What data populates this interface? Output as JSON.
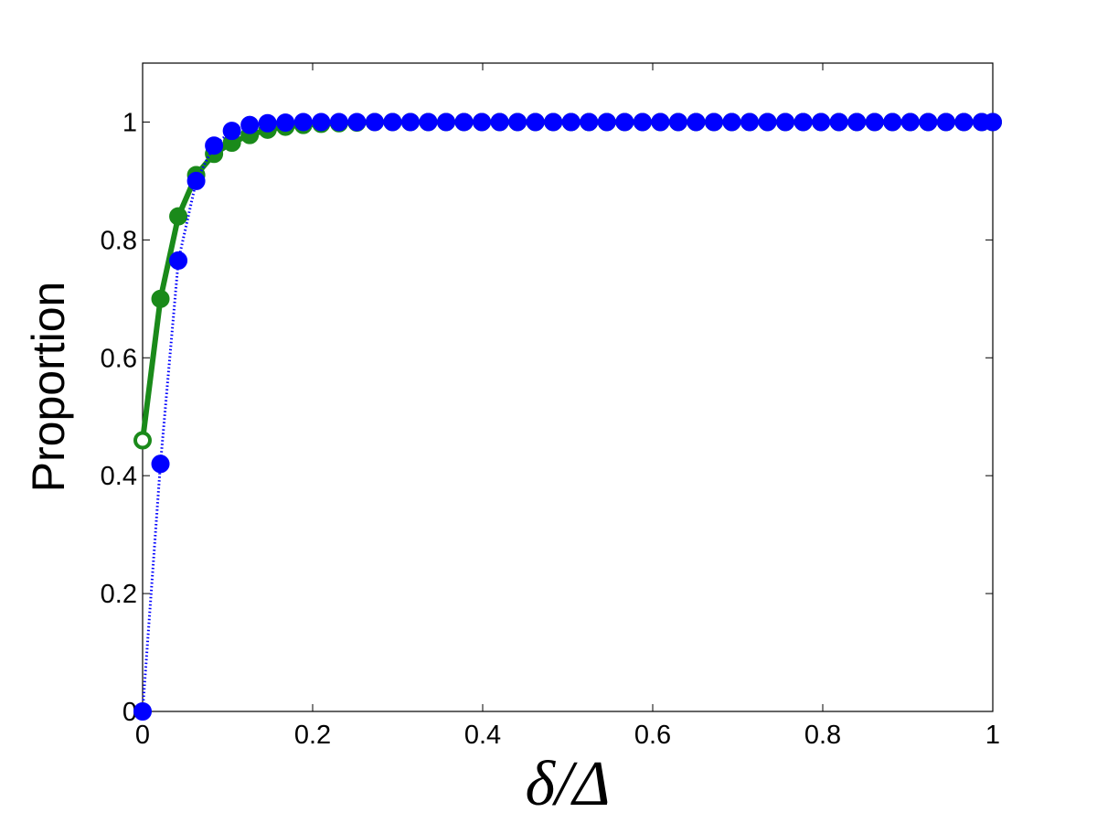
{
  "chart_data": {
    "type": "line",
    "title": "",
    "xlabel": "δ/Δ",
    "ylabel": "Proportion",
    "xlim": [
      0,
      1
    ],
    "ylim": [
      0,
      1.1
    ],
    "grid": false,
    "xticks": [
      0,
      0.2,
      0.4,
      0.6,
      0.8,
      1
    ],
    "xtick_labels": [
      "0",
      "0.2",
      "0.4",
      "0.6",
      "0.8",
      "1"
    ],
    "yticks": [
      0,
      0.2,
      0.4,
      0.6,
      0.8,
      1
    ],
    "ytick_labels": [
      "0",
      "0.2",
      "0.4",
      "0.6",
      "0.8",
      "1"
    ],
    "x": [
      0,
      0.021,
      0.042,
      0.063,
      0.084,
      0.105,
      0.126,
      0.147,
      0.168,
      0.189,
      0.21,
      0.231,
      0.252,
      0.273,
      0.294,
      0.315,
      0.336,
      0.357,
      0.378,
      0.399,
      0.42,
      0.441,
      0.462,
      0.483,
      0.504,
      0.525,
      0.546,
      0.567,
      0.588,
      0.609,
      0.63,
      0.651,
      0.672,
      0.693,
      0.714,
      0.735,
      0.756,
      0.777,
      0.798,
      0.819,
      0.84,
      0.861,
      0.882,
      0.903,
      0.924,
      0.945,
      0.966,
      0.987,
      1.0
    ],
    "series": [
      {
        "color": "#1a8a1a",
        "line_style": "solid",
        "values": [
          0.46,
          0.7,
          0.84,
          0.91,
          0.946,
          0.965,
          0.978,
          0.987,
          0.992,
          0.995,
          0.997,
          0.998,
          0.999,
          1,
          1,
          1,
          1,
          1,
          1,
          1,
          1,
          1,
          1,
          1,
          1,
          1,
          1,
          1,
          1,
          1,
          1,
          1,
          1,
          1,
          1,
          1,
          1,
          1,
          1,
          1,
          1,
          1,
          1,
          1,
          1,
          1,
          1,
          1,
          1
        ]
      },
      {
        "color": "#0000ff",
        "line_style": "dotted",
        "values": [
          0.0,
          0.42,
          0.765,
          0.9,
          0.96,
          0.985,
          0.995,
          0.998,
          0.999,
          1,
          1,
          1,
          1,
          1,
          1,
          1,
          1,
          1,
          1,
          1,
          1,
          1,
          1,
          1,
          1,
          1,
          1,
          1,
          1,
          1,
          1,
          1,
          1,
          1,
          1,
          1,
          1,
          1,
          1,
          1,
          1,
          1,
          1,
          1,
          1,
          1,
          1,
          1,
          1
        ]
      }
    ]
  }
}
